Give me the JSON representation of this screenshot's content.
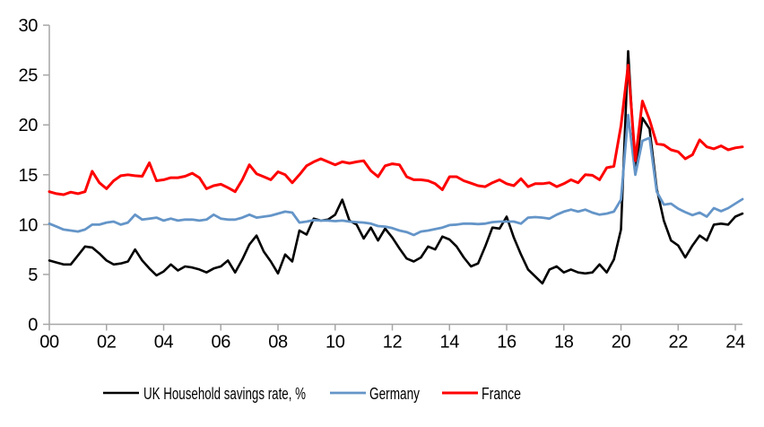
{
  "chart_data": {
    "type": "line",
    "title": "",
    "x_axis": {
      "tick_labels": [
        "00",
        "02",
        "04",
        "06",
        "08",
        "10",
        "12",
        "14",
        "16",
        "18",
        "20",
        "22",
        "24"
      ],
      "tick_years": [
        2000,
        2002,
        2004,
        2006,
        2008,
        2010,
        2012,
        2014,
        2016,
        2018,
        2020,
        2022,
        2024
      ],
      "range": [
        2000,
        2024.25
      ],
      "frequency": "quarterly"
    },
    "y_axis": {
      "tick_labels": [
        "0",
        "5",
        "10",
        "15",
        "20",
        "25",
        "30"
      ],
      "tick_values": [
        0,
        5,
        10,
        15,
        20,
        25,
        30
      ],
      "range": [
        0,
        30
      ]
    },
    "grid": false,
    "legend_position": "bottom",
    "x_start": 2000,
    "x_step": 0.25,
    "series": [
      {
        "name": "UK Household savings rate, %",
        "color": "#000000",
        "stroke_width": 2.6,
        "values": [
          6.4,
          6.2,
          6.0,
          6.0,
          6.9,
          7.8,
          7.7,
          7.1,
          6.4,
          6.0,
          6.1,
          6.3,
          7.5,
          6.4,
          5.6,
          4.9,
          5.3,
          6.0,
          5.4,
          5.8,
          5.7,
          5.5,
          5.2,
          5.6,
          5.8,
          6.4,
          5.2,
          6.5,
          8.0,
          8.9,
          7.3,
          6.3,
          5.1,
          7.0,
          6.3,
          9.4,
          9.0,
          10.6,
          10.4,
          10.5,
          11.0,
          12.5,
          10.4,
          10.0,
          8.6,
          9.7,
          8.4,
          9.6,
          8.7,
          7.6,
          6.6,
          6.3,
          6.7,
          7.8,
          7.5,
          8.8,
          8.5,
          7.8,
          6.7,
          5.8,
          6.1,
          7.8,
          9.7,
          9.6,
          10.8,
          8.7,
          7.0,
          5.5,
          4.8,
          4.1,
          5.5,
          5.8,
          5.2,
          5.5,
          5.2,
          5.1,
          5.2,
          6.0,
          5.2,
          6.5,
          9.5,
          27.4,
          15.2,
          20.7,
          19.6,
          13.6,
          10.4,
          8.4,
          7.9,
          6.7,
          7.9,
          8.9,
          8.4,
          10.0,
          10.1,
          10.0,
          10.8,
          11.1
        ]
      },
      {
        "name": "Germany",
        "color": "#6495C8",
        "stroke_width": 2.8,
        "values": [
          10.1,
          9.8,
          9.5,
          9.4,
          9.3,
          9.5,
          10.0,
          10.0,
          10.2,
          10.3,
          10.0,
          10.2,
          11.0,
          10.5,
          10.6,
          10.7,
          10.4,
          10.6,
          10.4,
          10.5,
          10.5,
          10.4,
          10.5,
          11.0,
          10.6,
          10.5,
          10.5,
          10.7,
          11.0,
          10.7,
          10.8,
          10.9,
          11.1,
          11.3,
          11.2,
          10.2,
          10.3,
          10.45,
          10.4,
          10.4,
          10.35,
          10.4,
          10.3,
          10.25,
          10.2,
          10.1,
          9.85,
          9.8,
          9.65,
          9.4,
          9.25,
          8.95,
          9.3,
          9.4,
          9.55,
          9.7,
          9.95,
          10.0,
          10.1,
          10.1,
          10.05,
          10.1,
          10.25,
          10.3,
          10.3,
          10.3,
          10.1,
          10.7,
          10.75,
          10.7,
          10.6,
          11.0,
          11.3,
          11.5,
          11.3,
          11.5,
          11.2,
          11.0,
          11.1,
          11.3,
          12.5,
          21.0,
          15.0,
          18.4,
          18.7,
          13.3,
          12.0,
          12.1,
          11.6,
          11.25,
          10.95,
          11.2,
          10.8,
          11.65,
          11.35,
          11.65,
          12.1,
          12.55
        ]
      },
      {
        "name": "France",
        "color": "#FF0000",
        "stroke_width": 3.0,
        "values": [
          13.3,
          13.1,
          13.0,
          13.25,
          13.1,
          13.3,
          15.35,
          14.2,
          13.6,
          14.4,
          14.9,
          15.0,
          14.9,
          14.85,
          16.2,
          14.4,
          14.5,
          14.7,
          14.7,
          14.85,
          15.15,
          14.7,
          13.6,
          13.9,
          14.05,
          13.7,
          13.3,
          14.5,
          16.0,
          15.1,
          14.8,
          14.5,
          15.3,
          15.0,
          14.2,
          15.0,
          15.9,
          16.3,
          16.6,
          16.3,
          16.0,
          16.3,
          16.15,
          16.3,
          16.4,
          15.4,
          14.8,
          15.9,
          16.1,
          16.0,
          14.8,
          14.5,
          14.5,
          14.4,
          14.1,
          13.5,
          14.8,
          14.8,
          14.4,
          14.15,
          13.9,
          13.8,
          14.2,
          14.5,
          14.1,
          13.9,
          14.6,
          13.8,
          14.1,
          14.1,
          14.2,
          13.8,
          14.1,
          14.5,
          14.2,
          15.0,
          14.95,
          14.5,
          15.7,
          15.85,
          19.9,
          26.0,
          16.4,
          22.4,
          20.5,
          18.1,
          18.0,
          17.5,
          17.3,
          16.6,
          17.0,
          18.5,
          17.8,
          17.6,
          17.9,
          17.5,
          17.7,
          17.8
        ]
      }
    ]
  },
  "colors": {
    "axis": "#A6A6A6",
    "text": "#000000",
    "background": "#FFFFFF"
  }
}
